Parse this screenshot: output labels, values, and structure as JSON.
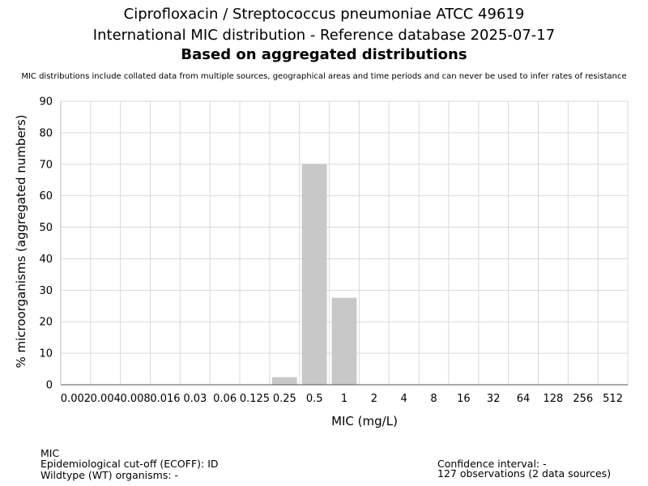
{
  "header": {
    "title_line1": "Ciprofloxacin / Streptococcus pneumoniae ATCC 49619",
    "title_line2": "International MIC distribution - Reference database 2025-07-17",
    "title_line3": "Based on aggregated distributions",
    "note": "MIC distributions include collated data from multiple sources, geographical areas and time periods and can never be used to infer rates of resistance"
  },
  "chart_data": {
    "type": "bar",
    "categories": [
      "0.002",
      "0.004",
      "0.008",
      "0.016",
      "0.03",
      "0.06",
      "0.125",
      "0.25",
      "0.5",
      "1",
      "2",
      "4",
      "8",
      "16",
      "32",
      "64",
      "128",
      "256",
      "512"
    ],
    "values": [
      0,
      0,
      0,
      0,
      0,
      0,
      0,
      2.4,
      70.1,
      27.6,
      0,
      0,
      0,
      0,
      0,
      0,
      0,
      0,
      0
    ],
    "xlabel": "MIC (mg/L)",
    "ylabel": "% microorganisms (aggregated numbers)",
    "ylim": [
      0,
      90
    ],
    "yticks": [
      0,
      10,
      20,
      30,
      40,
      50,
      60,
      70,
      80,
      90
    ],
    "grid": true,
    "bar_color": "#c8c8c8",
    "grid_color": "#d9d9d9"
  },
  "footer": {
    "left_line1": "MIC",
    "left_line2": "Epidemiological cut-off (ECOFF): ID",
    "left_line3": "Wildtype (WT) organisms:  -",
    "right_line1": "Confidence interval: -",
    "right_line2": "127 observations (2 data sources)"
  }
}
